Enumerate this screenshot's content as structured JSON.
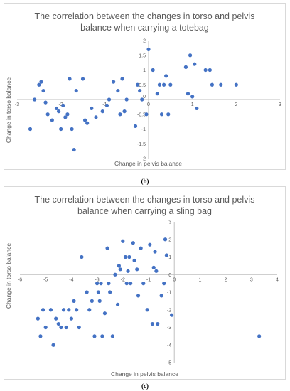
{
  "chart_data": [
    {
      "type": "scatter",
      "title_lines": [
        "The correlation between the changes in torso and pelvis",
        "balance when carrying a totebag"
      ],
      "xlabel": "Change in pelvis balance",
      "ylabel": "Change in torso balance",
      "xlim": [
        -3,
        3
      ],
      "ylim": [
        -2,
        2
      ],
      "xticks": [
        -3,
        -2,
        -1,
        0,
        1,
        2,
        3
      ],
      "yticks": [
        -2,
        -1.5,
        -1,
        -0.5,
        0,
        0.5,
        1,
        1.5,
        2
      ],
      "color": "#4472c4",
      "points": [
        [
          -2.7,
          -1.0
        ],
        [
          -2.6,
          0.0
        ],
        [
          -2.5,
          0.5
        ],
        [
          -2.45,
          0.6
        ],
        [
          -2.4,
          0.3
        ],
        [
          -2.35,
          -0.1
        ],
        [
          -2.3,
          -0.5
        ],
        [
          -2.2,
          -0.7
        ],
        [
          -2.1,
          -0.3
        ],
        [
          -2.05,
          -0.4
        ],
        [
          -2.0,
          -1.0
        ],
        [
          -1.95,
          -0.2
        ],
        [
          -1.9,
          -0.6
        ],
        [
          -1.85,
          -0.5
        ],
        [
          -1.8,
          0.7
        ],
        [
          -1.75,
          -1.0
        ],
        [
          -1.7,
          -1.7
        ],
        [
          -1.65,
          0.3
        ],
        [
          -1.5,
          0.7
        ],
        [
          -1.45,
          -0.7
        ],
        [
          -1.4,
          -0.8
        ],
        [
          -1.3,
          -0.3
        ],
        [
          -1.2,
          -0.6
        ],
        [
          -1.05,
          -0.4
        ],
        [
          -0.95,
          -0.2
        ],
        [
          -0.9,
          0.0
        ],
        [
          -0.8,
          0.6
        ],
        [
          -0.7,
          0.3
        ],
        [
          -0.65,
          -0.5
        ],
        [
          -0.6,
          0.7
        ],
        [
          -0.55,
          -0.4
        ],
        [
          -0.5,
          0.0
        ],
        [
          -0.3,
          -0.9
        ],
        [
          -0.25,
          0.5
        ],
        [
          -0.2,
          0.3
        ],
        [
          -0.15,
          0.0
        ],
        [
          -0.05,
          -0.5
        ],
        [
          0.0,
          1.7
        ],
        [
          0.1,
          1.0
        ],
        [
          0.2,
          0.2
        ],
        [
          0.25,
          0.5
        ],
        [
          0.3,
          -0.5
        ],
        [
          0.35,
          0.5
        ],
        [
          0.4,
          0.8
        ],
        [
          0.45,
          -0.5
        ],
        [
          0.5,
          0.5
        ],
        [
          0.85,
          1.1
        ],
        [
          0.9,
          0.2
        ],
        [
          0.95,
          1.5
        ],
        [
          1.0,
          0.1
        ],
        [
          1.05,
          1.2
        ],
        [
          1.1,
          -0.3
        ],
        [
          1.3,
          1.0
        ],
        [
          1.4,
          1.0
        ],
        [
          1.45,
          0.5
        ],
        [
          1.65,
          0.5
        ],
        [
          2.0,
          0.5
        ]
      ]
    },
    {
      "type": "scatter",
      "title_lines": [
        "The correlation between the changes in torso and pelvis",
        "balance when carrying a sling bag"
      ],
      "xlabel": "Change in pelvis balance",
      "ylabel": "Change in torso balance",
      "xlim": [
        -6,
        4
      ],
      "ylim": [
        -5,
        3
      ],
      "xticks": [
        -6,
        -5,
        -4,
        -3,
        -2,
        -1,
        0,
        1,
        2,
        3,
        4
      ],
      "yticks": [
        -5,
        -4,
        -3,
        -2,
        -1,
        0,
        1,
        2,
        3
      ],
      "color": "#4472c4",
      "points": [
        [
          -5.3,
          -2.5
        ],
        [
          -5.2,
          -3.5
        ],
        [
          -5.1,
          -2.0
        ],
        [
          -5.0,
          -3.0
        ],
        [
          -4.8,
          -2.0
        ],
        [
          -4.7,
          -4.0
        ],
        [
          -4.6,
          -2.5
        ],
        [
          -4.5,
          -2.8
        ],
        [
          -4.4,
          -3.0
        ],
        [
          -4.3,
          -2.0
        ],
        [
          -4.2,
          -3.0
        ],
        [
          -4.1,
          -2.0
        ],
        [
          -4.0,
          -2.5
        ],
        [
          -3.9,
          -1.5
        ],
        [
          -3.8,
          -2.0
        ],
        [
          -3.7,
          -3.0
        ],
        [
          -3.6,
          1.0
        ],
        [
          -3.4,
          -1.0
        ],
        [
          -3.3,
          -2.0
        ],
        [
          -3.2,
          -1.5
        ],
        [
          -3.1,
          -3.5
        ],
        [
          -3.0,
          -0.5
        ],
        [
          -2.95,
          -1.0
        ],
        [
          -2.9,
          -1.5
        ],
        [
          -2.85,
          -0.5
        ],
        [
          -2.8,
          -3.5
        ],
        [
          -2.7,
          -2.2
        ],
        [
          -2.6,
          1.5
        ],
        [
          -2.55,
          -0.5
        ],
        [
          -2.5,
          -1.0
        ],
        [
          -2.4,
          -3.5
        ],
        [
          -2.3,
          0.0
        ],
        [
          -2.2,
          -1.7
        ],
        [
          -2.15,
          0.5
        ],
        [
          -2.1,
          0.3
        ],
        [
          -2.0,
          1.9
        ],
        [
          -1.9,
          1.0
        ],
        [
          -1.85,
          -0.5
        ],
        [
          -1.8,
          0.2
        ],
        [
          -1.75,
          1.0
        ],
        [
          -1.7,
          -0.5
        ],
        [
          -1.6,
          1.8
        ],
        [
          -1.55,
          0.8
        ],
        [
          -1.45,
          0.3
        ],
        [
          -1.4,
          -1.2
        ],
        [
          -1.3,
          1.5
        ],
        [
          -1.2,
          -0.5
        ],
        [
          -1.05,
          -2.0
        ],
        [
          -0.95,
          1.7
        ],
        [
          -0.85,
          -2.8
        ],
        [
          -0.8,
          0.4
        ],
        [
          -0.75,
          1.3
        ],
        [
          -0.7,
          0.2
        ],
        [
          -0.65,
          -2.8
        ],
        [
          -0.5,
          -1.2
        ],
        [
          -0.4,
          -0.5
        ],
        [
          -0.35,
          2.0
        ],
        [
          -0.3,
          1.1
        ],
        [
          -0.1,
          -2.3
        ],
        [
          3.3,
          -3.5
        ]
      ]
    }
  ],
  "captions": [
    "(b)",
    "(c)"
  ]
}
